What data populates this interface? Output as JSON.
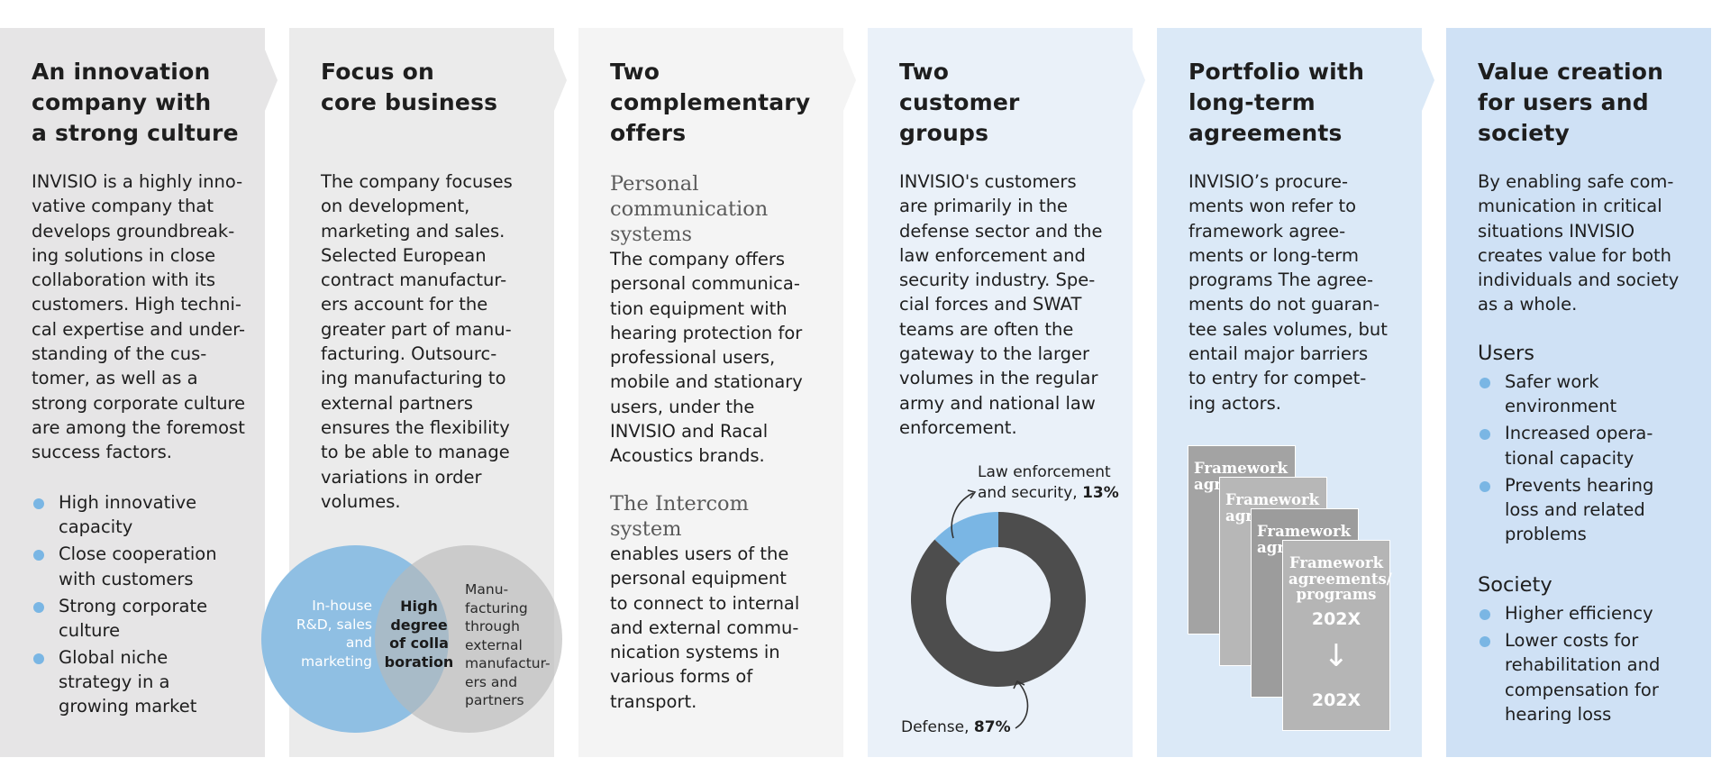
{
  "colors": {
    "panel1": "#e6e5e6",
    "panel2": "#ebebeb",
    "panel3": "#f4f4f4",
    "panel4": "#eaf1f9",
    "panel5": "#dbe9f7",
    "panel6": "#cfe1f5",
    "accent_blue": "#7ab6e4",
    "donut_dark": "#4d4d4d"
  },
  "panels": [
    {
      "title": "An innovation\ncompany with\na strong culture",
      "body": "INVISIO is a highly inno-\nvative company that\ndevelops groundbreak-\ning solutions in close\ncollaboration with its\ncustomers. High techni-\ncal expertise and under-\nstanding of the cus-\ntomer, as well as a\nstrong corporate culture\nare among the foremost\nsuccess factors.",
      "bullets": [
        "High innovative\ncapacity",
        "Close cooperation\nwith customers",
        "Strong corporate\nculture",
        "Global niche\nstrategy in a\ngrowing market"
      ]
    },
    {
      "title": "Focus on\ncore business",
      "body": "The company focuses\non development,\nmarketing and sales.\nSelected European\ncontract manufactur-\ners account for the\ngreater part of manu-\nfacturing. Outsourc-\ning manufacturing to\nexternal partners\nensures the flexibility\nto be able to manage\nvariations in order\nvolumes.",
      "venn": {
        "left": "In-house\nR&D, sales\nand\nmarketing",
        "overlap": "High\ndegree\nof colla\nboration",
        "right": "Manu-\nfacturing\nthrough\nexternal\nmanufactur-\ners and\npartners"
      }
    },
    {
      "title": "Two\ncomplementary\noffers",
      "sub1": "Personal\ncommunication\nsystems",
      "body1": "The company offers\npersonal communica-\ntion equipment with\nhearing protection for\nprofessional users,\nmobile and stationary\nusers, under the\nINVISIO and Racal\nAcoustics brands.",
      "sub2": "The Intercom\nsystem",
      "body2": "enables users of the\npersonal equipment\nto connect to internal\nand external commu-\nnication systems in\nvarious forms of\ntransport."
    },
    {
      "title": "Two\ncustomer\ngroups",
      "body": "INVISIO's customers\nare primarily in the\ndefense sector and the\nlaw enforcement and\nsecurity industry. Spe-\ncial forces and SWAT\nteams are often the\ngateway to the larger\nvolumes in the regular\narmy and national law\nenforcement."
    },
    {
      "title": "Portfolio with\nlong-term\nagreements",
      "body": "INVISIO’s procure-\nments won refer to\nframework agree-\nments or long-term\nprograms The agree-\nments do not guaran-\ntee sales volumes, but\nentail major barriers\nto entry for compet-\ning actors.",
      "cards": {
        "label": "Framework\nagr",
        "last_label": "Framework\nagreements/\nprograms",
        "year_top": "202X",
        "year_bottom": "202X",
        "arrow": "↓"
      }
    },
    {
      "title": "Value creation\nfor users and\nsociety",
      "body": "By enabling safe com-\nmunication in critical\nsituations INVISIO\ncreates value for both\nindividuals and society\nas a whole.",
      "users_heading": "Users",
      "users": [
        "Safer work\nenvironment",
        "Increased opera-\ntional capacity",
        "Prevents hearing\nloss and related\nproblems"
      ],
      "society_heading": "Society",
      "society": [
        "Higher efficiency",
        "Lower costs for\nrehabilitation and\ncompensation for\nhearing loss"
      ]
    }
  ],
  "chart_data": {
    "type": "pie",
    "donut": true,
    "slices": [
      {
        "label": "Law enforcement and security",
        "value": 13,
        "color": "#7ab6e4"
      },
      {
        "label": "Defense",
        "value": 87,
        "color": "#4d4d4d"
      }
    ],
    "labels": {
      "law_text": "Law enforcement\nand security, ",
      "law_value": "13%",
      "defense_text": "Defense, ",
      "defense_value": "87%"
    }
  }
}
